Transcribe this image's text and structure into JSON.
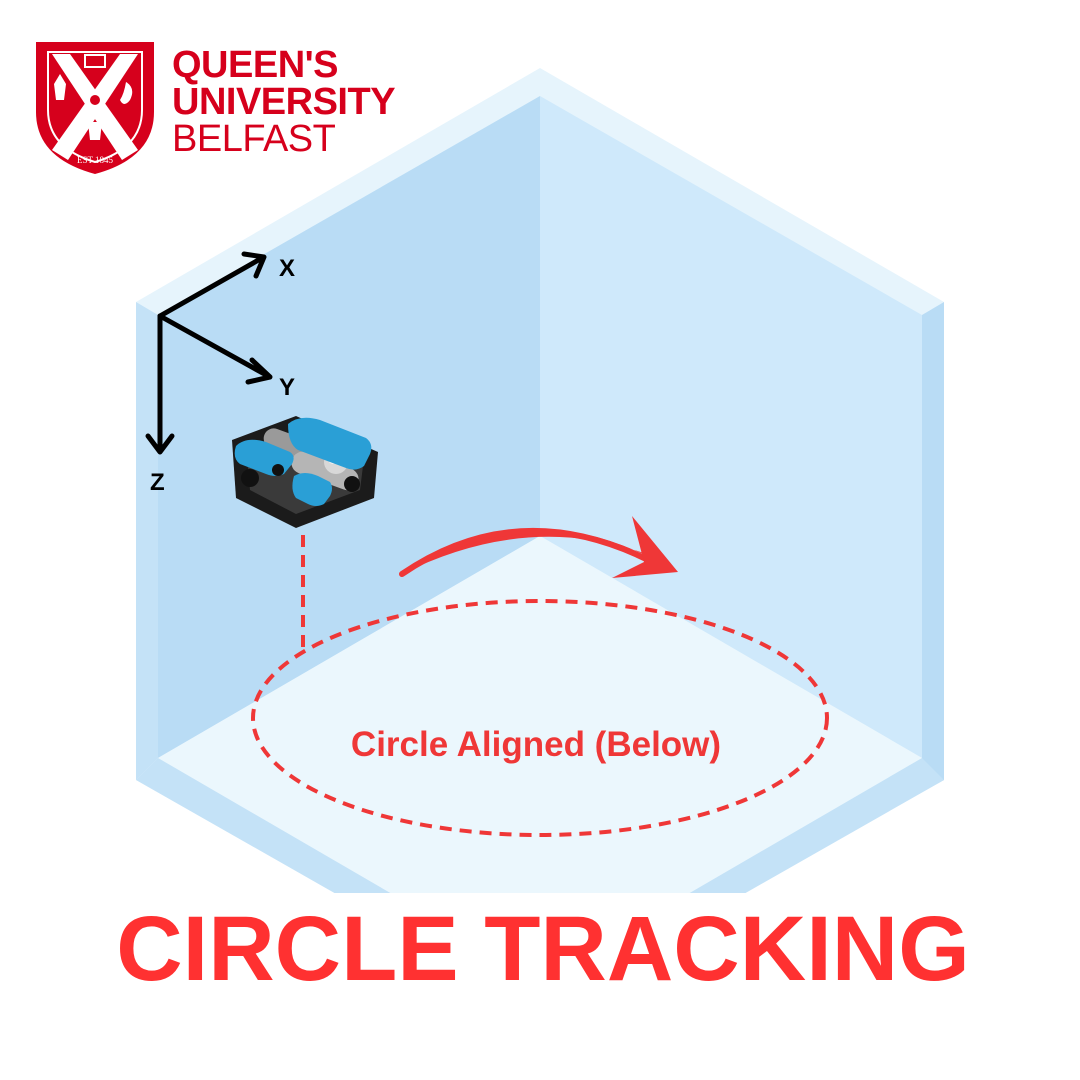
{
  "logo": {
    "line1": "QUEEN'S",
    "line2": "UNIVERSITY",
    "line3": "BELFAST",
    "established": "EST 1845",
    "icon": "university-crest-icon"
  },
  "axes": {
    "x_label": "X",
    "y_label": "Y",
    "z_label": "Z"
  },
  "vehicle": {
    "icon": "underwater-rov-icon"
  },
  "circle": {
    "label": "Circle Aligned (Below)"
  },
  "title": "CIRCLE TRACKING",
  "colors": {
    "brand_red": "#d6001c",
    "accent_red": "#ef3737",
    "tank_side": "#b9dcf5",
    "tank_back": "#cfe9fb",
    "tank_floor": "#ebf7fd",
    "tank_rim": "#e6f4fc",
    "rov_blue": "#2a9fd6"
  }
}
